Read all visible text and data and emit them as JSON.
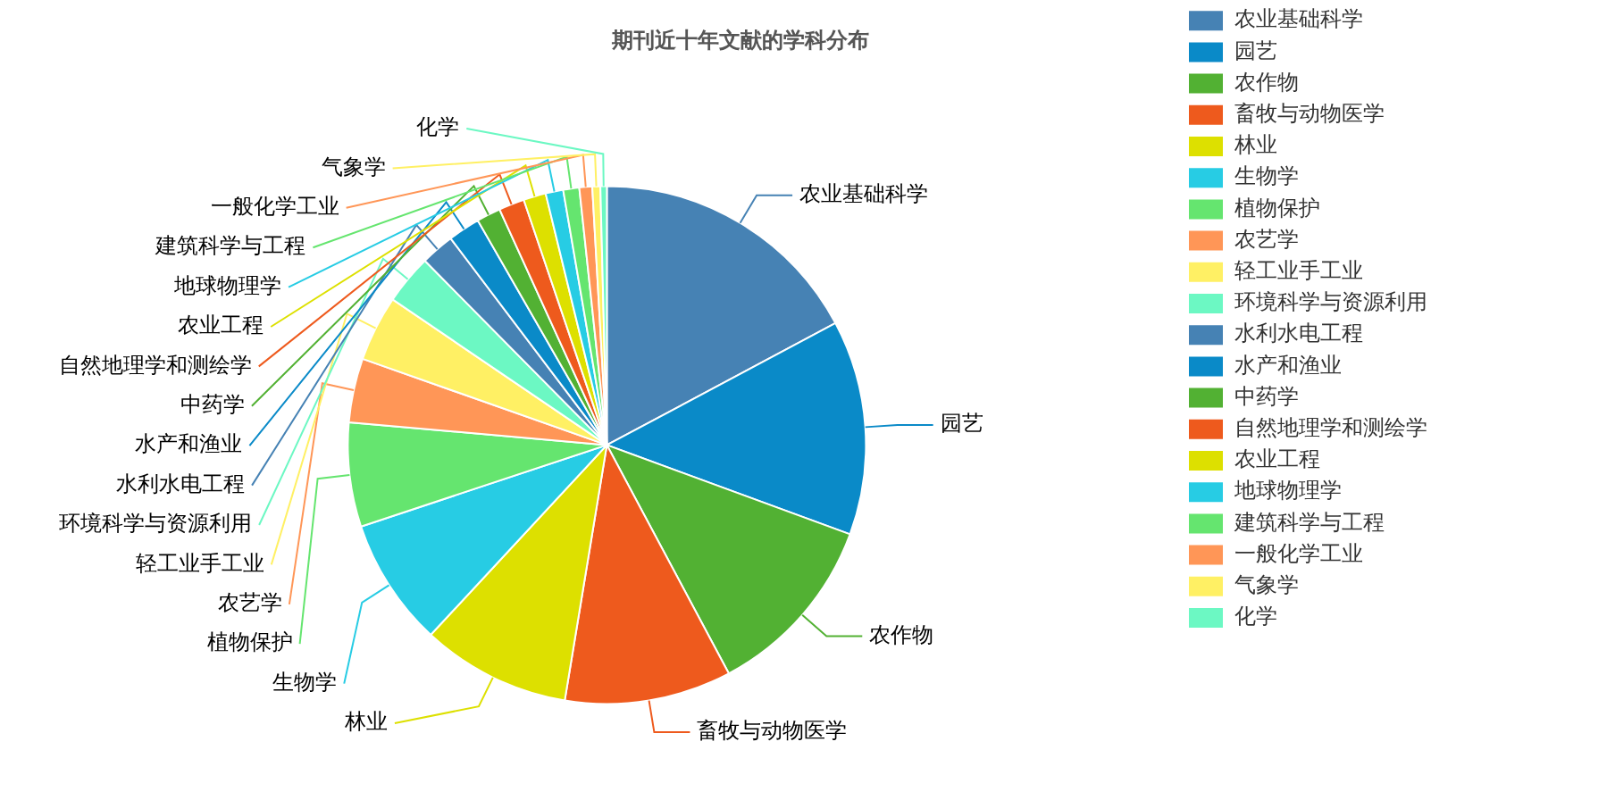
{
  "chart_data": {
    "type": "pie",
    "title": "期刊近十年文献的学科分布",
    "categories": [
      "农业基础科学",
      "园艺",
      "农作物",
      "畜牧与动物医学",
      "林业",
      "生物学",
      "植物保护",
      "农艺学",
      "轻工业手工业",
      "环境科学与资源利用",
      "水利水电工程",
      "水产和渔业",
      "中药学",
      "自然地理学和测绘学",
      "农业工程",
      "地球物理学",
      "建筑科学与工程",
      "一般化学工业",
      "气象学",
      "化学"
    ],
    "values": [
      17.2,
      13.4,
      11.6,
      10.4,
      9.3,
      8.0,
      6.5,
      4.0,
      4.1,
      3.1,
      2.1,
      2.0,
      1.5,
      1.6,
      1.4,
      1.1,
      1.0,
      0.8,
      0.5,
      0.4
    ],
    "colors": [
      "#4682b4",
      "#0a8ac8",
      "#52b133",
      "#ee5a1d",
      "#dde000",
      "#27cce4",
      "#65e56f",
      "#ff9657",
      "#fff064",
      "#6cf8c3",
      "#4682b4",
      "#0a8ac8",
      "#52b133",
      "#ee5a1d",
      "#dde000",
      "#27cce4",
      "#65e56f",
      "#ff9657",
      "#fff064",
      "#6cf8c3"
    ],
    "legend": "right"
  }
}
